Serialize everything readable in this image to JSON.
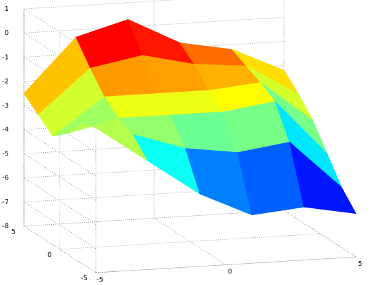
{
  "chart_data": {
    "type": "surface",
    "x": [
      -5,
      -3,
      -1,
      1,
      3,
      5
    ],
    "y": [
      -5,
      -3,
      -1,
      1,
      3,
      5
    ],
    "z": [
      [
        -2.0,
        -3.5,
        -5.0,
        -6.0,
        -5.8,
        -6.2
      ],
      [
        -2.2,
        -2.8,
        -3.5,
        -3.8,
        -3.5,
        -5.5
      ],
      [
        -3.0,
        -2.5,
        -2.5,
        -2.5,
        -2.2,
        -4.5
      ],
      [
        -3.5,
        -2.0,
        -2.0,
        -2.0,
        -1.8,
        -3.5
      ],
      [
        -3.0,
        -1.2,
        -0.8,
        -1.3,
        -1.5,
        -2.8
      ],
      [
        -2.5,
        -0.3,
        0.3,
        -0.8,
        -1.2,
        -2.2
      ]
    ],
    "xlim": [
      -5,
      5
    ],
    "xticks": [
      -5,
      0,
      5
    ],
    "ylim": [
      -5,
      5
    ],
    "yticks": [
      -5,
      0,
      5
    ],
    "zlim": [
      -8,
      1
    ],
    "zticks": [
      -8,
      -7,
      -6,
      -5,
      -4,
      -3,
      -2,
      -1,
      0,
      1
    ],
    "colormap": "jet",
    "grid": true
  }
}
